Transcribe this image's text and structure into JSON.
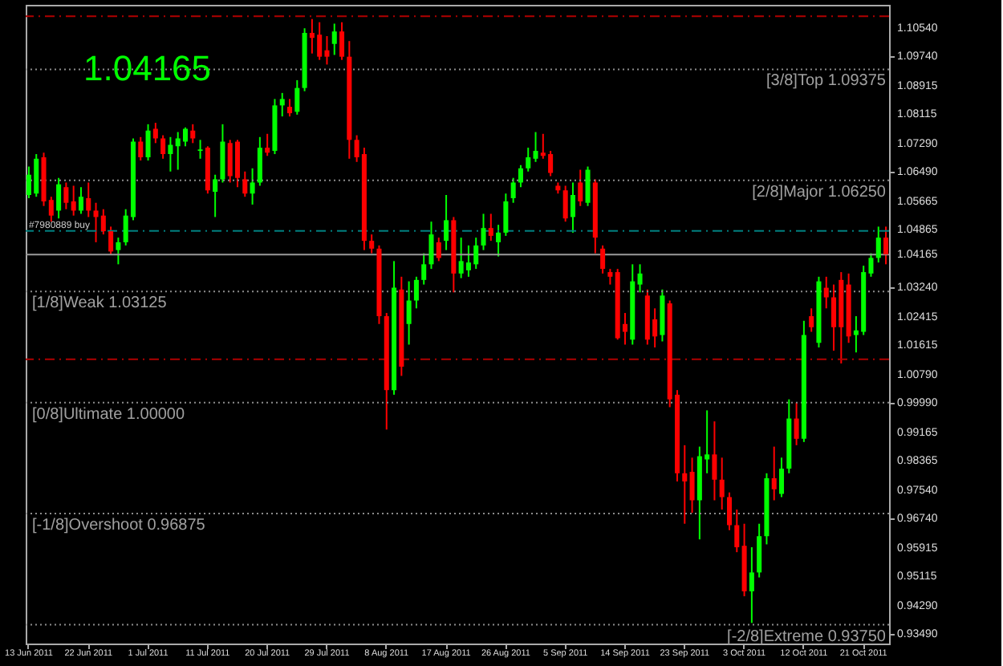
{
  "chart_data": {
    "type": "candlestick",
    "categories": [
      "13 Jun 2011",
      null,
      null,
      null,
      null,
      null,
      null,
      null,
      "22 Jun 2011",
      null,
      null,
      null,
      null,
      null,
      null,
      null,
      "1 Jul 2011",
      null,
      null,
      null,
      null,
      null,
      null,
      null,
      "11 Jul 2011",
      null,
      null,
      null,
      null,
      null,
      null,
      null,
      "20 Jul 2011",
      null,
      null,
      null,
      null,
      null,
      null,
      null,
      "29 Jul 2011",
      null,
      null,
      null,
      null,
      null,
      null,
      null,
      "8 Aug 2011",
      null,
      null,
      null,
      null,
      null,
      null,
      null,
      "17 Aug 2011",
      null,
      null,
      null,
      null,
      null,
      null,
      null,
      "26 Aug 2011",
      null,
      null,
      null,
      null,
      null,
      null,
      null,
      "5 Sep 2011",
      null,
      null,
      null,
      null,
      null,
      null,
      null,
      "14 Sep 2011",
      null,
      null,
      null,
      null,
      null,
      null,
      null,
      "23 Sep 2011",
      null,
      null,
      null,
      null,
      null,
      null,
      null,
      "3 Oct 2011",
      null,
      null,
      null,
      null,
      null,
      null,
      null,
      "12 Oct 2011",
      null,
      null,
      null,
      null,
      null,
      null,
      null,
      "21 Oct 2011",
      null,
      null,
      null
    ],
    "ohlc": [
      [
        1.0584,
        1.0664,
        1.0575,
        1.0641
      ],
      [
        1.0588,
        1.0699,
        1.0579,
        1.0686
      ],
      [
        1.069,
        1.0703,
        1.0553,
        1.0566
      ],
      [
        1.057,
        1.0579,
        1.0509,
        1.0526
      ],
      [
        1.054,
        1.0632,
        1.0518,
        1.0614
      ],
      [
        1.0606,
        1.0619,
        1.0544,
        1.0562
      ],
      [
        1.0566,
        1.061,
        1.0526,
        1.054
      ],
      [
        1.054,
        1.0606,
        1.0531,
        1.0579
      ],
      [
        1.0575,
        1.0619,
        1.0522,
        1.054
      ],
      [
        1.054,
        1.0562,
        1.0451,
        1.0522
      ],
      [
        1.0526,
        1.0544,
        1.0473,
        1.0482
      ],
      [
        1.0482,
        1.0495,
        1.0416,
        1.0425
      ],
      [
        1.0429,
        1.0464,
        1.0389,
        1.0451
      ],
      [
        1.0451,
        1.0544,
        1.0442,
        1.0526
      ],
      [
        1.0522,
        1.0743,
        1.0513,
        1.0734
      ],
      [
        1.0734,
        1.0747,
        1.0681,
        1.069
      ],
      [
        1.069,
        1.0783,
        1.0681,
        1.0765
      ],
      [
        1.077,
        1.0787,
        1.073,
        1.0743
      ],
      [
        1.0743,
        1.0752,
        1.0686,
        1.0699
      ],
      [
        1.0699,
        1.0747,
        1.065,
        1.0725
      ],
      [
        1.0721,
        1.0761,
        1.0655,
        1.0743
      ],
      [
        1.0734,
        1.0774,
        1.0721,
        1.077
      ],
      [
        1.0765,
        1.0783,
        1.073,
        1.0743
      ],
      [
        1.0708,
        1.0739,
        1.0686,
        1.0712
      ],
      [
        1.0717,
        1.0721,
        1.0588,
        1.0597
      ],
      [
        1.0593,
        1.0641,
        1.0522,
        1.0628
      ],
      [
        1.0628,
        1.0783,
        1.0619,
        1.0734
      ],
      [
        1.073,
        1.0739,
        1.0619,
        1.0637
      ],
      [
        1.0734,
        1.0739,
        1.0606,
        1.0632
      ],
      [
        1.0628,
        1.065,
        1.0579,
        1.0588
      ],
      [
        1.0588,
        1.0659,
        1.0557,
        1.0619
      ],
      [
        1.0619,
        1.0747,
        1.061,
        1.0717
      ],
      [
        1.0717,
        1.0756,
        1.0694,
        1.0703
      ],
      [
        1.0708,
        1.0854,
        1.0699,
        1.0836
      ],
      [
        1.0836,
        1.0871,
        1.0805,
        1.0854
      ],
      [
        1.0832,
        1.0854,
        1.0805,
        1.0814
      ],
      [
        1.0818,
        1.0907,
        1.081,
        1.0885
      ],
      [
        1.0885,
        1.1053,
        1.0876,
        1.104
      ],
      [
        1.104,
        1.1079,
        1.0982,
        1.1026
      ],
      [
        1.1035,
        1.107,
        1.0964,
        1.0973
      ],
      [
        1.0991,
        1.1031,
        1.0951,
        1.0973
      ],
      [
        1.1009,
        1.1066,
        1.0978,
        1.1044
      ],
      [
        1.1044,
        1.107,
        1.0964,
        1.0973
      ],
      [
        1.0973,
        1.1017,
        1.0686,
        1.0739
      ],
      [
        1.0739,
        1.0752,
        1.0677,
        1.069
      ],
      [
        1.0699,
        1.0717,
        1.0429,
        1.0455
      ],
      [
        1.0455,
        1.0473,
        1.042,
        1.0433
      ],
      [
        1.0433,
        1.0442,
        1.0221,
        1.0243
      ],
      [
        1.0243,
        1.0252,
        0.9924,
        1.0035
      ],
      [
        1.0035,
        1.0398,
        1.0022,
        1.0323
      ],
      [
        1.0318,
        1.0354,
        1.0075,
        1.0101
      ],
      [
        1.0221,
        1.0341,
        1.0163,
        1.0287
      ],
      [
        1.0287,
        1.0354,
        1.0265,
        1.0345
      ],
      [
        1.0345,
        1.042,
        1.0332,
        1.0389
      ],
      [
        1.0389,
        1.0509,
        1.0376,
        1.0473
      ],
      [
        1.0451,
        1.0464,
        1.0398,
        1.0407
      ],
      [
        1.0455,
        1.0584,
        1.0429,
        1.0513
      ],
      [
        1.0513,
        1.0522,
        1.031,
        1.0363
      ],
      [
        1.0363,
        1.0464,
        1.035,
        1.0398
      ],
      [
        1.0372,
        1.0442,
        1.0354,
        1.0394
      ],
      [
        1.0389,
        1.0464,
        1.0376,
        1.0442
      ],
      [
        1.0442,
        1.0531,
        1.0429,
        1.0491
      ],
      [
        1.0491,
        1.0531,
        1.0455,
        1.0469
      ],
      [
        1.0451,
        1.05,
        1.0411,
        1.0478
      ],
      [
        1.0478,
        1.0588,
        1.0469,
        1.0566
      ],
      [
        1.0575,
        1.0632,
        1.0562,
        1.0619
      ],
      [
        1.0619,
        1.0668,
        1.0606,
        1.0659
      ],
      [
        1.0659,
        1.0717,
        1.065,
        1.069
      ],
      [
        1.0686,
        1.0761,
        1.0677,
        1.0708
      ],
      [
        1.0703,
        1.0756,
        1.0686,
        1.0694
      ],
      [
        1.0699,
        1.0708,
        1.0637,
        1.0646
      ],
      [
        1.061,
        1.0619,
        1.0588,
        1.0597
      ],
      [
        1.0597,
        1.061,
        1.0509,
        1.0518
      ],
      [
        1.0522,
        1.0619,
        1.0478,
        1.0584
      ],
      [
        1.0619,
        1.0655,
        1.0553,
        1.0566
      ],
      [
        1.0562,
        1.0664,
        1.0553,
        1.0655
      ],
      [
        1.0619,
        1.0628,
        1.042,
        1.0464
      ],
      [
        1.0433,
        1.0442,
        1.0363,
        1.0376
      ],
      [
        1.0367,
        1.0376,
        1.0332,
        1.0354
      ],
      [
        1.0367,
        1.0376,
        1.0177,
        1.0181
      ],
      [
        1.0221,
        1.0252,
        1.0163,
        1.0199
      ],
      [
        1.0177,
        1.0389,
        1.0163,
        1.0341
      ],
      [
        1.0332,
        1.0389,
        1.031,
        1.0363
      ],
      [
        1.0301,
        1.0318,
        1.0163,
        1.0177
      ],
      [
        1.0234,
        1.0265,
        1.0155,
        1.0186
      ],
      [
        1.019,
        1.0318,
        1.0172,
        1.0301
      ],
      [
        1.0279,
        1.0287,
        0.9987,
        1.0009
      ],
      [
        1.0022,
        1.0035,
        0.9778,
        0.9801
      ],
      [
        0.9801,
        0.988,
        0.9659,
        0.9778
      ],
      [
        0.9805,
        0.9845,
        0.969,
        0.9725
      ],
      [
        0.9725,
        0.9876,
        0.9615,
        0.9849
      ],
      [
        0.984,
        0.9978,
        0.9801,
        0.9854
      ],
      [
        0.9854,
        0.9947,
        0.9725,
        0.9783
      ],
      [
        0.9783,
        0.9845,
        0.9699,
        0.9734
      ],
      [
        0.9734,
        0.9747,
        0.9641,
        0.9655
      ],
      [
        0.9655,
        0.9699,
        0.9579,
        0.9593
      ],
      [
        0.9597,
        0.9659,
        0.9455,
        0.9469
      ],
      [
        0.9469,
        0.9593,
        0.938,
        0.9522
      ],
      [
        0.9522,
        0.9659,
        0.9508,
        0.9624
      ],
      [
        0.9624,
        0.9801,
        0.9601,
        0.9787
      ],
      [
        0.9787,
        0.9876,
        0.9725,
        0.9756
      ],
      [
        0.9743,
        0.9845,
        0.9734,
        0.9814
      ],
      [
        0.9814,
        1.0009,
        0.9801,
        0.9955
      ],
      [
        0.9955,
        1.0,
        0.988,
        0.9898
      ],
      [
        0.9898,
        1.023,
        0.9889,
        1.019
      ],
      [
        1.0243,
        1.0265,
        1.0199,
        1.0212
      ],
      [
        1.0168,
        1.0354,
        1.0155,
        1.0341
      ],
      [
        1.0323,
        1.0354,
        1.0265,
        1.0296
      ],
      [
        1.0296,
        1.0332,
        1.0146,
        1.0212
      ],
      [
        1.0345,
        1.0367,
        1.011,
        1.0212
      ],
      [
        1.0332,
        1.0363,
        1.0168,
        1.0186
      ],
      [
        1.019,
        1.0243,
        1.0141,
        1.0203
      ],
      [
        1.0199,
        1.0385,
        1.019,
        1.0367
      ],
      [
        1.0363,
        1.042,
        1.0354,
        1.0407
      ],
      [
        1.0407,
        1.0495,
        1.0394,
        1.0464
      ],
      [
        1.0464,
        1.0495,
        1.0389,
        1.04165
      ]
    ],
    "colors": [
      "#00ff00",
      "#00ff00",
      "#ff0000",
      "#ff0000",
      "#00ff00",
      "#ff0000",
      "#ff0000",
      "#00ff00",
      "#ff0000",
      "#ff0000",
      "#ff0000",
      "#ff0000",
      "#00ff00",
      "#00ff00",
      "#00ff00",
      "#ff0000",
      "#00ff00",
      "#ff0000",
      "#ff0000",
      "#00ff00",
      "#00ff00",
      "#00ff00",
      "#ff0000",
      "#00ff00",
      "#ff0000",
      "#00ff00",
      "#00ff00",
      "#ff0000",
      "#ff0000",
      "#ff0000",
      "#00ff00",
      "#00ff00",
      "#ff0000",
      "#00ff00",
      "#00ff00",
      "#ff0000",
      "#00ff00",
      "#00ff00",
      "#ff0000",
      "#ff0000",
      "#ff0000",
      "#00ff00",
      "#ff0000",
      "#ff0000",
      "#ff0000",
      "#ff0000",
      "#ff0000",
      "#ff0000",
      "#ff0000",
      "#00ff00",
      "#ff0000",
      "#00ff00",
      "#00ff00",
      "#00ff00",
      "#00ff00",
      "#ff0000",
      "#00ff00",
      "#ff0000",
      "#00ff00",
      "#00ff00",
      "#00ff00",
      "#00ff00",
      "#ff0000",
      "#00ff00",
      "#00ff00",
      "#00ff00",
      "#00ff00",
      "#00ff00",
      "#00ff00",
      "#ff0000",
      "#ff0000",
      "#ff0000",
      "#ff0000",
      "#00ff00",
      "#ff0000",
      "#00ff00",
      "#ff0000",
      "#ff0000",
      "#ff0000",
      "#ff0000",
      "#ff0000",
      "#00ff00",
      "#00ff00",
      "#ff0000",
      "#ff0000",
      "#00ff00",
      "#ff0000",
      "#ff0000",
      "#ff0000",
      "#ff0000",
      "#00ff00",
      "#00ff00",
      "#ff0000",
      "#ff0000",
      "#ff0000",
      "#ff0000",
      "#ff0000",
      "#00ff00",
      "#00ff00",
      "#00ff00",
      "#ff0000",
      "#00ff00",
      "#00ff00",
      "#ff0000",
      "#00ff00",
      "#ff0000",
      "#00ff00",
      "#ff0000",
      "#ff0000",
      "#ff0000",
      "#ff0000",
      "#00ff00",
      "#00ff00",
      "#00ff00",
      "#00ff00",
      "#ff0000"
    ],
    "ylim": [
      0.9322,
      1.1119
    ],
    "yticks": [
      {
        "value": 1.1054,
        "label": "1.10540"
      },
      {
        "value": 1.0974,
        "label": "1.09740"
      },
      {
        "value": 1.08915,
        "label": "1.08915"
      },
      {
        "value": 1.08115,
        "label": "1.08115"
      },
      {
        "value": 1.0729,
        "label": "1.07290"
      },
      {
        "value": 1.0649,
        "label": "1.06490"
      },
      {
        "value": 1.05665,
        "label": "1.05665"
      },
      {
        "value": 1.04865,
        "label": "1.04865"
      },
      {
        "value": 1.04165,
        "label": "1.04165"
      },
      {
        "value": 1.0324,
        "label": "1.03240"
      },
      {
        "value": 1.02415,
        "label": "1.02415"
      },
      {
        "value": 1.01615,
        "label": "1.01615"
      },
      {
        "value": 1.0079,
        "label": "1.00790"
      },
      {
        "value": 0.9999,
        "label": "0.99990"
      },
      {
        "value": 0.99165,
        "label": "0.99165"
      },
      {
        "value": 0.98365,
        "label": "0.98365"
      },
      {
        "value": 0.9754,
        "label": "0.97540"
      },
      {
        "value": 0.9674,
        "label": "0.96740"
      },
      {
        "value": 0.95915,
        "label": "0.95915"
      },
      {
        "value": 0.95115,
        "label": "0.95115"
      },
      {
        "value": 0.9429,
        "label": "0.94290"
      },
      {
        "value": 0.9349,
        "label": "0.93490"
      }
    ],
    "ref_lines": [
      {
        "axis": "y",
        "value": 1.09375,
        "label": "[3/8]Top 1.09375",
        "color": "#8c8c8c",
        "line_style": "dotted"
      },
      {
        "axis": "y",
        "value": 1.0625,
        "label": "[2/8]Major 1.06250",
        "color": "#8c8c8c",
        "line_style": "dotted"
      },
      {
        "axis": "y",
        "value": 1.03125,
        "label": "[1/8]Weak 1.03125",
        "color": "#8c8c8c",
        "line_style": "dotted"
      },
      {
        "axis": "y",
        "value": 1.0,
        "label": "[0/8]Ultimate 1.00000",
        "color": "#8c8c8c",
        "line_style": "dotted"
      },
      {
        "axis": "y",
        "value": 0.96875,
        "label": "[-1/8]Overshoot 0.96875",
        "color": "#8c8c8c",
        "line_style": "dotted"
      },
      {
        "axis": "y",
        "value": 0.9375,
        "label": "[-2/8]Extreme 0.93750",
        "color": "#8c8c8c",
        "line_style": "dotted"
      },
      {
        "axis": "y",
        "value": 1.1087,
        "color": "#b00000",
        "line_style": "dashed"
      },
      {
        "axis": "y",
        "value": 1.0122,
        "color": "#b00000",
        "line_style": "dashed"
      },
      {
        "axis": "y",
        "value": 1.0483,
        "color": "#008080",
        "line_style": "dashed"
      },
      {
        "axis": "y",
        "value": 1.04165,
        "color": "#9a9a9a",
        "line_style": "solid"
      }
    ],
    "annotations": [
      "1.04165",
      {
        "text": "#7980889 buy",
        "x": "13 Jun 2011",
        "y": 1.0483
      }
    ]
  }
}
